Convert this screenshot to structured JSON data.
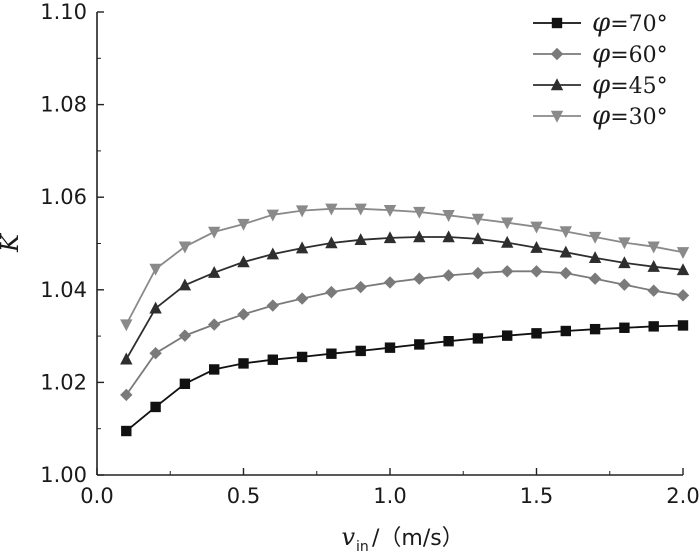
{
  "chart_data": {
    "type": "line",
    "title": "",
    "xlabel_var": "v",
    "xlabel_sub": "in",
    "xlabel_unit": "/（m/s）",
    "ylabel": "K",
    "xlim": [
      0.0,
      2.0
    ],
    "ylim": [
      1.0,
      1.1
    ],
    "x_ticks": [
      "0.0",
      "0.5",
      "1.0",
      "1.5",
      "2.0"
    ],
    "y_ticks": [
      "1.00",
      "1.02",
      "1.04",
      "1.06",
      "1.08",
      "1.10"
    ],
    "legend_position": "top-right",
    "x": [
      0.1,
      0.2,
      0.3,
      0.4,
      0.5,
      0.6,
      0.7,
      0.8,
      0.9,
      1.0,
      1.1,
      1.2,
      1.3,
      1.4,
      1.5,
      1.6,
      1.7,
      1.8,
      1.9,
      2.0
    ],
    "series": [
      {
        "name_symbol": "φ",
        "name_value": "=70°",
        "marker": "square",
        "color": "#111111",
        "values": [
          1.0095,
          1.0147,
          1.0197,
          1.0228,
          1.0241,
          1.0249,
          1.0255,
          1.0262,
          1.0268,
          1.0275,
          1.0282,
          1.0289,
          1.0295,
          1.0301,
          1.0306,
          1.0311,
          1.0315,
          1.0318,
          1.0321,
          1.0323
        ]
      },
      {
        "name_symbol": "φ",
        "name_value": "=60°",
        "marker": "diamond",
        "color": "#7a7a7a",
        "values": [
          1.0173,
          1.0263,
          1.0301,
          1.0325,
          1.0347,
          1.0366,
          1.0381,
          1.0395,
          1.0406,
          1.0416,
          1.0424,
          1.0431,
          1.0436,
          1.044,
          1.044,
          1.0436,
          1.0424,
          1.0411,
          1.0398,
          1.0388
        ]
      },
      {
        "name_symbol": "φ",
        "name_value": "=45°",
        "marker": "triangle-up",
        "color": "#2e2e2e",
        "values": [
          1.025,
          1.036,
          1.041,
          1.0437,
          1.046,
          1.0477,
          1.049,
          1.0501,
          1.0508,
          1.0512,
          1.0514,
          1.0514,
          1.051,
          1.0502,
          1.0491,
          1.0481,
          1.0469,
          1.0458,
          1.045,
          1.0443
        ]
      },
      {
        "name_symbol": "φ",
        "name_value": "=30°",
        "marker": "triangle-down",
        "color": "#8a8a8a",
        "values": [
          1.0325,
          1.0445,
          1.0493,
          1.0525,
          1.0542,
          1.0562,
          1.0571,
          1.0575,
          1.0575,
          1.0572,
          1.0568,
          1.0561,
          1.0553,
          1.0545,
          1.0536,
          1.0526,
          1.0514,
          1.0502,
          1.0493,
          1.0481
        ]
      }
    ]
  }
}
